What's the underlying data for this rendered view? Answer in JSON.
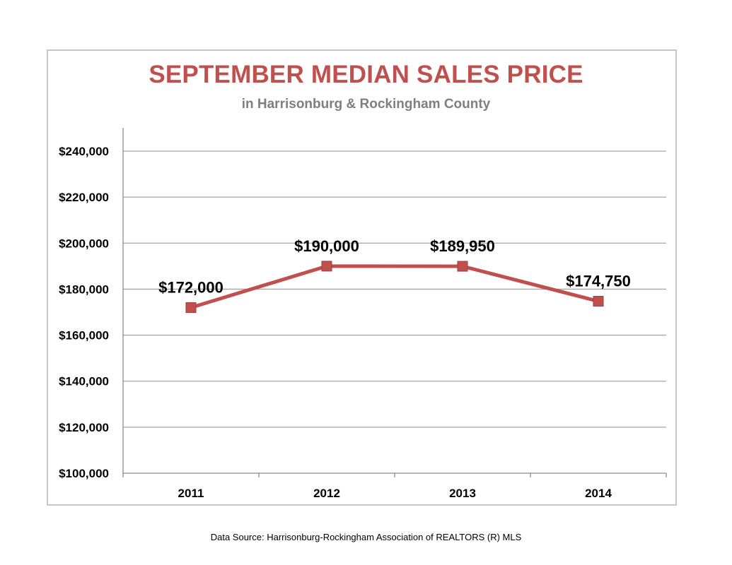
{
  "chart_data": {
    "type": "line",
    "title": "SEPTEMBER MEDIAN SALES PRICE",
    "subtitle": "in Harrisonburg  & Rockingham County",
    "categories": [
      "2011",
      "2012",
      "2013",
      "2014"
    ],
    "series": [
      {
        "values": [
          172000,
          190000,
          189950,
          174750
        ],
        "data_labels": [
          "$172,000",
          "$190,000",
          "$189,950",
          "$174,750"
        ]
      }
    ],
    "ylim": [
      100000,
      240000
    ],
    "yticks": [
      100000,
      120000,
      140000,
      160000,
      180000,
      200000,
      220000,
      240000
    ],
    "ytick_labels": [
      "$100,000",
      "$120,000",
      "$140,000",
      "$160,000",
      "$180,000",
      "$200,000",
      "$220,000",
      "$240,000"
    ],
    "grid": true,
    "colors": {
      "line": "#c0504d",
      "marker": "#c0504d",
      "title": "#c0504d",
      "subtitle": "#7f7f7f",
      "grid": "#a6a6a6"
    }
  },
  "footer": {
    "source": "Data Source: Harrisonburg-Rockingham Association of REALTORS (R) MLS"
  }
}
